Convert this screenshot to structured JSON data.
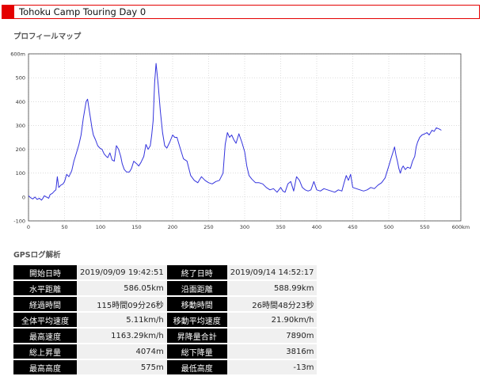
{
  "header": {
    "title": "Tohoku Camp Touring Day 0"
  },
  "profile": {
    "heading": "プロフィールマップ"
  },
  "gps": {
    "heading": "GPSログ解析",
    "rows": [
      [
        {
          "label": "開始日時",
          "value": "2019/09/09 19:42:51"
        },
        {
          "label": "終了日時",
          "value": "2019/09/14 14:52:17"
        }
      ],
      [
        {
          "label": "水平距離",
          "value": "586.05km"
        },
        {
          "label": "沿面距離",
          "value": "588.99km"
        }
      ],
      [
        {
          "label": "経過時間",
          "value": "115時間09分26秒"
        },
        {
          "label": "移動時間",
          "value": "26時間48分23秒"
        }
      ],
      [
        {
          "label": "全体平均速度",
          "value": "5.11km/h"
        },
        {
          "label": "移動平均速度",
          "value": "21.90km/h"
        }
      ],
      [
        {
          "label": "最高速度",
          "value": "1163.29km/h"
        },
        {
          "label": "昇降量合計",
          "value": "7890m"
        }
      ],
      [
        {
          "label": "総上昇量",
          "value": "4074m"
        },
        {
          "label": "総下降量",
          "value": "3816m"
        }
      ],
      [
        {
          "label": "最高高度",
          "value": "575m"
        },
        {
          "label": "最低高度",
          "value": "-13m"
        }
      ]
    ]
  },
  "chart_data": {
    "type": "line",
    "title": "",
    "xlabel": "",
    "ylabel": "",
    "xlim": [
      0,
      600
    ],
    "ylim": [
      -100,
      600
    ],
    "grid": true,
    "x_ticks": [
      "0",
      "50",
      "100",
      "150",
      "200",
      "250",
      "300",
      "350",
      "400",
      "450",
      "500",
      "550",
      "600km"
    ],
    "y_ticks": [
      "600m",
      "500",
      "400",
      "300",
      "200",
      "100",
      "0",
      "-100"
    ],
    "series": [
      {
        "color": "#3333dd",
        "x": [
          0,
          3,
          6,
          9,
          12,
          15,
          18,
          20,
          22,
          25,
          28,
          30,
          33,
          36,
          38,
          40,
          42,
          45,
          48,
          50,
          53,
          56,
          60,
          63,
          66,
          70,
          73,
          76,
          80,
          82,
          84,
          86,
          88,
          90,
          93,
          96,
          99,
          102,
          105,
          108,
          110,
          113,
          116,
          119,
          122,
          125,
          128,
          130,
          133,
          136,
          140,
          143,
          146,
          150,
          153,
          156,
          160,
          163,
          166,
          169,
          171,
          173,
          175,
          177,
          180,
          183,
          186,
          189,
          192,
          196,
          200,
          203,
          206,
          210,
          215,
          220,
          225,
          230,
          235,
          240,
          245,
          250,
          255,
          260,
          265,
          270,
          273,
          276,
          279,
          282,
          285,
          288,
          292,
          296,
          300,
          303,
          306,
          310,
          315,
          320,
          325,
          330,
          335,
          340,
          345,
          350,
          353,
          356,
          360,
          364,
          368,
          372,
          376,
          380,
          384,
          388,
          392,
          396,
          400,
          405,
          410,
          415,
          420,
          425,
          430,
          435,
          438,
          441,
          444,
          447,
          450,
          455,
          460,
          465,
          470,
          475,
          480,
          485,
          490,
          495,
          500,
          503,
          506,
          508,
          510,
          512,
          514,
          516,
          518,
          520,
          523,
          526,
          530,
          533,
          536,
          538,
          540,
          543,
          546,
          550,
          553,
          556,
          560,
          563,
          566,
          570,
          573
        ],
        "y": [
          5,
          -3,
          -8,
          0,
          -10,
          -5,
          -13,
          -5,
          5,
          0,
          -5,
          10,
          15,
          25,
          30,
          85,
          40,
          50,
          55,
          65,
          95,
          85,
          110,
          150,
          180,
          220,
          260,
          330,
          400,
          410,
          370,
          330,
          290,
          260,
          240,
          215,
          205,
          200,
          180,
          170,
          165,
          185,
          155,
          150,
          215,
          200,
          170,
          140,
          115,
          105,
          105,
          120,
          150,
          140,
          130,
          145,
          170,
          220,
          200,
          215,
          260,
          320,
          480,
          560,
          470,
          360,
          270,
          215,
          205,
          230,
          260,
          250,
          250,
          210,
          160,
          150,
          90,
          70,
          60,
          85,
          70,
          60,
          55,
          65,
          70,
          100,
          220,
          270,
          250,
          260,
          240,
          225,
          265,
          230,
          190,
          130,
          90,
          75,
          60,
          60,
          55,
          40,
          30,
          35,
          20,
          40,
          25,
          20,
          55,
          65,
          25,
          85,
          70,
          40,
          30,
          25,
          30,
          65,
          30,
          25,
          35,
          30,
          25,
          20,
          30,
          25,
          60,
          90,
          70,
          95,
          40,
          35,
          30,
          25,
          30,
          40,
          35,
          50,
          60,
          80,
          130,
          160,
          190,
          210,
          175,
          150,
          120,
          100,
          120,
          130,
          115,
          125,
          120,
          150,
          170,
          210,
          230,
          250,
          260,
          265,
          270,
          260,
          280,
          275,
          290,
          285,
          280
        ]
      }
    ]
  }
}
